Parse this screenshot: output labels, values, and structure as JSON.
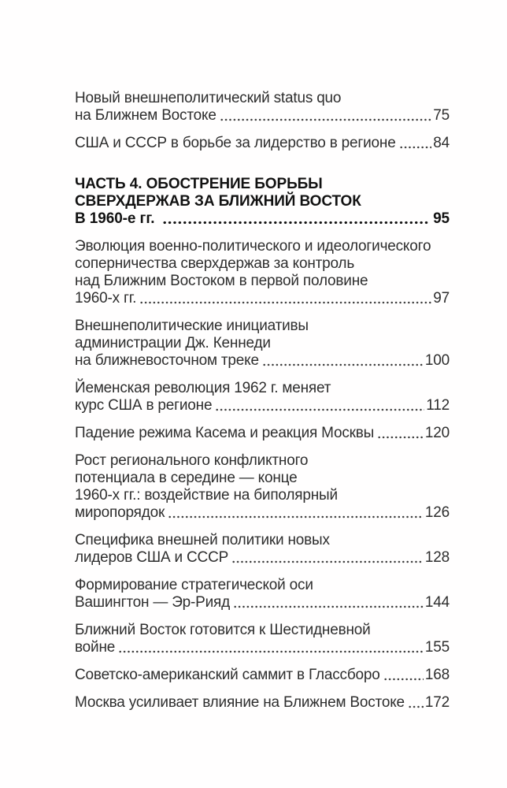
{
  "page": {
    "background": "#fffefe",
    "text_color": "#2e2e2e",
    "header_color": "#121212"
  },
  "toc": {
    "entries": [
      {
        "style": "normal",
        "lines": [
          "Новый внешнеполитический status quo",
          "на Ближнем Востоке"
        ],
        "page": "75"
      },
      {
        "style": "normal",
        "lines": [
          "США и СССР в борьбе за лидерство в регионе"
        ],
        "page": "84"
      },
      {
        "style": "header",
        "lines": [
          "ЧАСТЬ 4. ОБОСТРЕНИЕ БОРЬБЫ",
          "СВЕРХДЕРЖАВ ЗА БЛИЖНИЙ ВОСТОК",
          "В 1960-е гг."
        ],
        "page": "95"
      },
      {
        "style": "normal",
        "lines": [
          "Эволюция военно-политического и идеологического",
          "соперничества сверхдержав за контроль",
          "над Ближним Востоком в первой половине",
          "1960-х гг."
        ],
        "page": "97"
      },
      {
        "style": "normal",
        "lines": [
          "Внешнеполитические инициативы",
          "администрации Дж. Кеннеди",
          "на ближневосточном треке"
        ],
        "page": "100"
      },
      {
        "style": "normal",
        "lines": [
          "Йеменская революция 1962 г. меняет",
          "курс США в регионе"
        ],
        "page": "112"
      },
      {
        "style": "normal",
        "lines": [
          "Падение режима Касема и реакция Москвы"
        ],
        "page": "120"
      },
      {
        "style": "normal",
        "lines": [
          "Рост регионального конфликтного",
          "потенциала в середине — конце",
          "1960-х гг.: воздействие на биполярный",
          "миропорядок"
        ],
        "page": "126"
      },
      {
        "style": "normal",
        "lines": [
          "Специфика внешней политики новых",
          "лидеров США и СССР"
        ],
        "page": "128"
      },
      {
        "style": "normal",
        "lines": [
          "Формирование стратегической оси",
          "Вашингтон — Эр-Рияд"
        ],
        "page": "144"
      },
      {
        "style": "normal",
        "lines": [
          "Ближний Восток готовится к Шестидневной",
          "войне"
        ],
        "page": "155"
      },
      {
        "style": "normal",
        "lines": [
          "Советско-американский саммит в Глассборо"
        ],
        "page": "168"
      },
      {
        "style": "normal",
        "lines": [
          "Москва усиливает влияние на Ближнем Востоке"
        ],
        "page": "172"
      }
    ]
  }
}
